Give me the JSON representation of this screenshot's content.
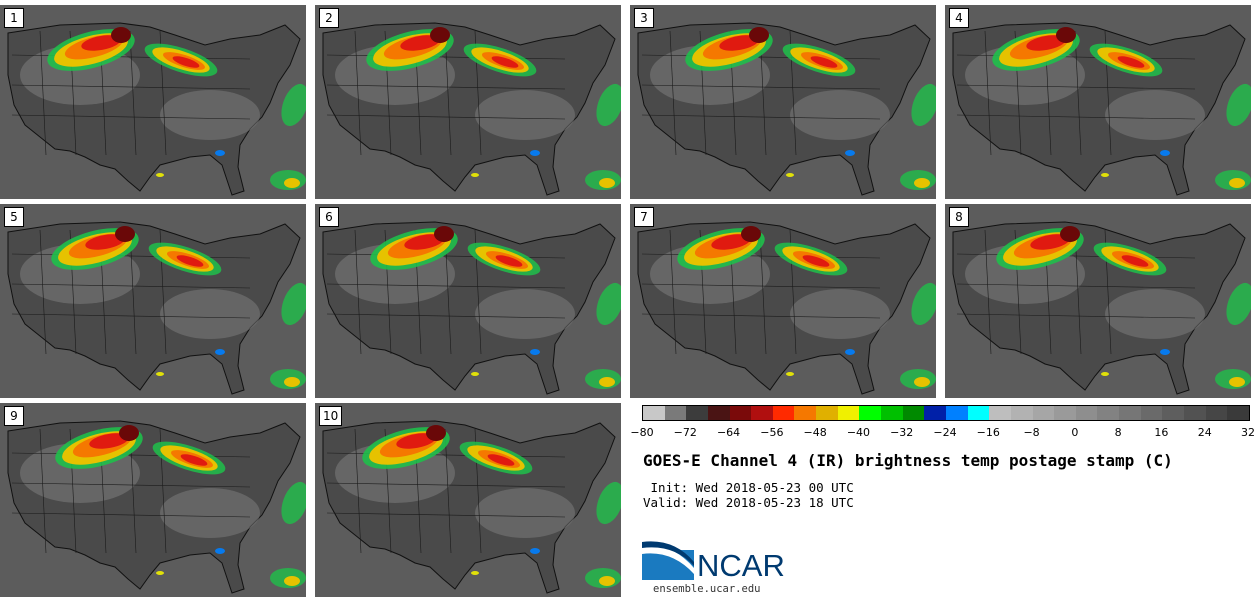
{
  "panels": [
    {
      "label": "1"
    },
    {
      "label": "2"
    },
    {
      "label": "3"
    },
    {
      "label": "4"
    },
    {
      "label": "5"
    },
    {
      "label": "6"
    },
    {
      "label": "7"
    },
    {
      "label": "8"
    },
    {
      "label": "9"
    },
    {
      "label": "10"
    }
  ],
  "colorbar": {
    "colors": [
      "#c8c8c8",
      "#7a7a7a",
      "#3c3c3c",
      "#4a1414",
      "#7a0a0a",
      "#b00f0f",
      "#ff2a00",
      "#f57800",
      "#e0b000",
      "#f0f000",
      "#00ff00",
      "#00c000",
      "#008a00",
      "#0020a8",
      "#0080ff",
      "#00ffff",
      "#bebebe",
      "#b2b2b2",
      "#a6a6a6",
      "#9a9a9a",
      "#8e8e8e",
      "#828282",
      "#767676",
      "#6a6a6a",
      "#5e5e5e",
      "#525252",
      "#464646",
      "#3a3a3a"
    ],
    "ticks": [
      "−80",
      "−72",
      "−64",
      "−56",
      "−48",
      "−40",
      "−32",
      "−24",
      "−16",
      "−8",
      "0",
      "8",
      "16",
      "24",
      "32"
    ]
  },
  "title": "GOES-E Channel 4 (IR) brightness temp postage stamp (C)",
  "init": " Init: Wed 2018-05-23 00 UTC",
  "valid": "Valid: Wed 2018-05-23 18 UTC",
  "logo": {
    "text": "NCAR",
    "url": "ensemble.ucar.edu"
  }
}
